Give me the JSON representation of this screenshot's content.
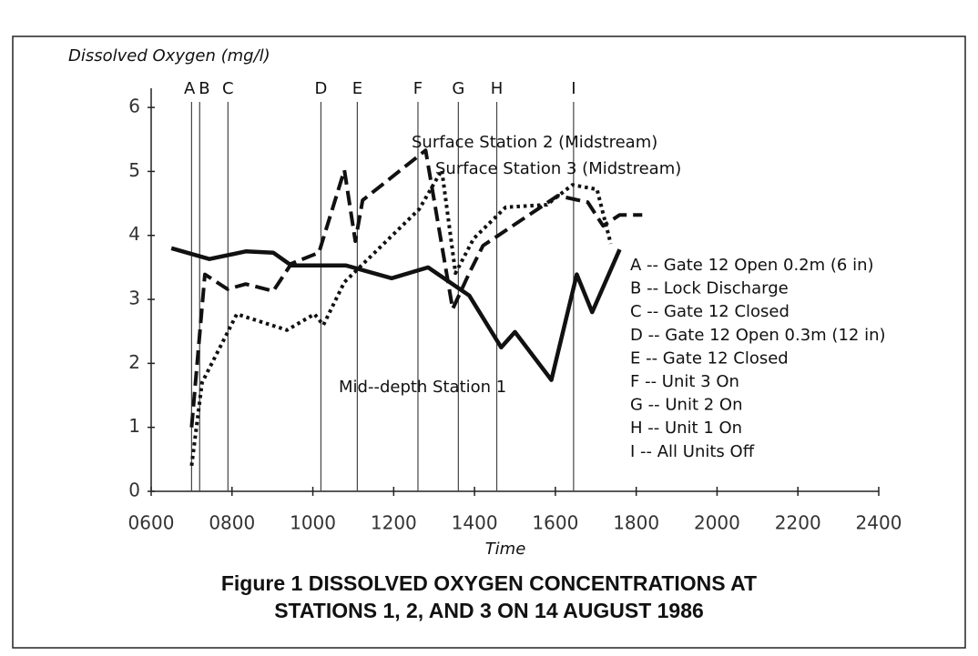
{
  "chart_data": {
    "type": "line",
    "title_lines": [
      "Figure 1  DISSOLVED OXYGEN CONCENTRATIONS AT",
      "STATIONS 1, 2, AND 3 ON 14 AUGUST 1986"
    ],
    "y_label": "Dissolved Oxygen (mg/l)",
    "x_label": "Time",
    "xlim": [
      600,
      2400
    ],
    "ylim": [
      0,
      6.3
    ],
    "xticks": [
      {
        "value": 600,
        "label": "0600"
      },
      {
        "value": 800,
        "label": "0800"
      },
      1000,
      1200,
      1400,
      1600,
      1800,
      2000,
      2200,
      2400
    ],
    "yticks": [
      0,
      1,
      2,
      3,
      4,
      5,
      6
    ],
    "series": [
      {
        "name": "Mid--depth Station 1",
        "color": "#111111",
        "style": "solid",
        "x": [
          650,
          744,
          834,
          902,
          947,
          1082,
          1195,
          1285,
          1387,
          1466,
          1500,
          1590,
          1653,
          1691,
          1759
        ],
        "values": [
          3.8,
          3.63,
          3.75,
          3.73,
          3.53,
          3.53,
          3.33,
          3.5,
          3.06,
          2.25,
          2.49,
          1.74,
          3.39,
          2.8,
          3.78
        ]
      },
      {
        "name": "Surface Station 2 (Midstream)",
        "color": "#111111",
        "style": "dashed",
        "x": [
          700,
          733,
          789,
          834,
          902,
          947,
          1015,
          1078,
          1105,
          1123,
          1279,
          1346,
          1387,
          1421,
          1556,
          1606,
          1680,
          1718,
          1759,
          1815
        ],
        "values": [
          1.0,
          3.39,
          3.16,
          3.24,
          3.13,
          3.56,
          3.73,
          5.02,
          3.91,
          4.55,
          5.33,
          2.85,
          3.41,
          3.84,
          4.41,
          4.62,
          4.52,
          4.15,
          4.32,
          4.32
        ]
      },
      {
        "name": "Surface Station 3 (Midstream)",
        "color": "#111111",
        "style": "dotted",
        "x": [
          700,
          726,
          812,
          936,
          1004,
          1026,
          1078,
          1263,
          1319,
          1353,
          1398,
          1477,
          1579,
          1642,
          1703,
          1737
        ],
        "values": [
          0.4,
          1.7,
          2.77,
          2.52,
          2.77,
          2.6,
          3.27,
          4.41,
          5.02,
          3.41,
          3.95,
          4.44,
          4.48,
          4.79,
          4.72,
          3.87
        ]
      }
    ],
    "events": [
      {
        "letter": "A",
        "x": 700,
        "text": "A -- Gate 12 Open 0.2m (6 in)"
      },
      {
        "letter": "B",
        "x": 720,
        "text": "B -- Lock Discharge"
      },
      {
        "letter": "C",
        "x": 790,
        "text": "C -- Gate 12 Closed"
      },
      {
        "letter": "D",
        "x": 1020,
        "text": "D -- Gate 12 Open 0.3m (12 in)"
      },
      {
        "letter": "E",
        "x": 1110,
        "text": "E -- Gate 12 Closed"
      },
      {
        "letter": "F",
        "x": 1260,
        "text": "F -- Unit 3 On"
      },
      {
        "letter": "G",
        "x": 1360,
        "text": "G -- Unit 2 On"
      },
      {
        "letter": "H",
        "x": 1455,
        "text": "H -- Unit 1 On"
      },
      {
        "letter": "I",
        "x": 1645,
        "text": "I -- All Units Off"
      }
    ]
  }
}
